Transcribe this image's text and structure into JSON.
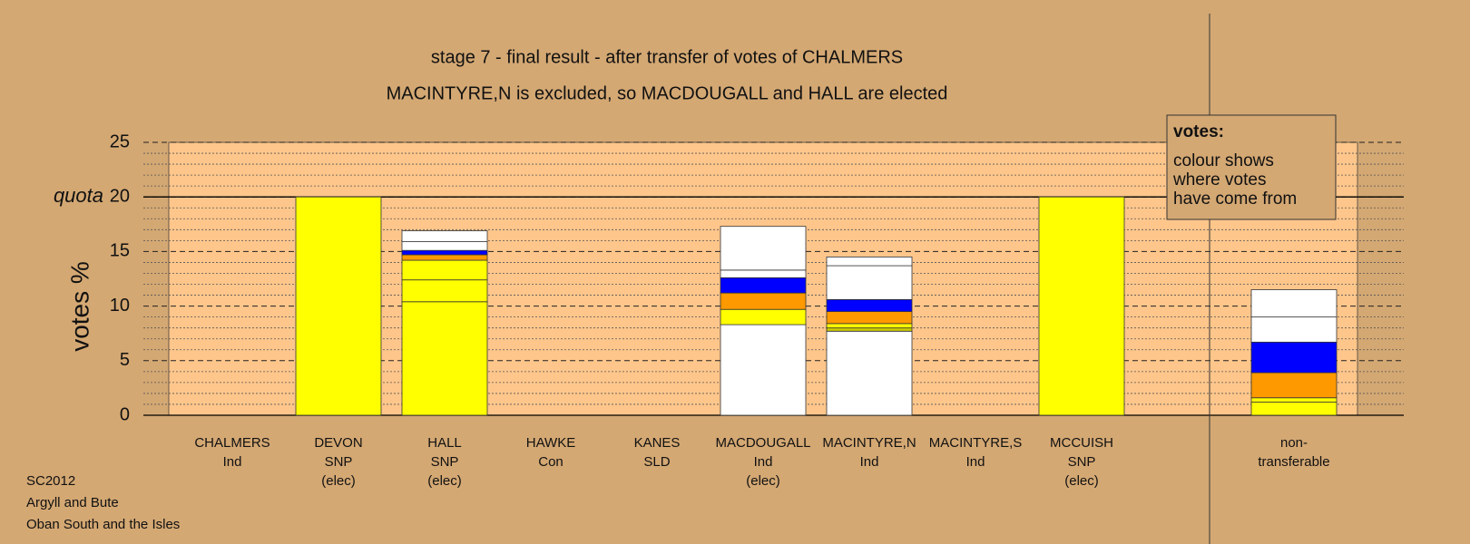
{
  "chart_data": {
    "type": "stacked-bar",
    "title": "stage 7 - final result - after transfer of votes of CHALMERS",
    "subtitle": "MACINTYRE,N is excluded, so MACDOUGALL and HALL are elected",
    "y_label": "votes %",
    "categories": [
      [
        "CHALMERS",
        "Ind"
      ],
      [
        "DEVON",
        "SNP",
        "(elec)"
      ],
      [
        "HALL",
        "SNP",
        "(elec)"
      ],
      [
        "HAWKE",
        "Con"
      ],
      [
        "KANES",
        "SLD"
      ],
      [
        "MACDOUGALL",
        "Ind",
        "(elec)"
      ],
      [
        "MACINTYRE,N",
        "Ind"
      ],
      [
        "MACINTYRE,S",
        "Ind"
      ],
      [
        "MCCUISH",
        "SNP",
        "(elec)"
      ],
      [
        "non-",
        "transferable"
      ]
    ],
    "stacks": [
      [],
      [
        {
          "color": "#ffff00",
          "value": 20
        }
      ],
      [
        {
          "color": "#ffff00",
          "value": 10.4
        },
        {
          "color": "#ffff00",
          "value": 2.0
        },
        {
          "color": "#ffff00",
          "value": 1.8
        },
        {
          "color": "#ff9900",
          "value": 0.5
        },
        {
          "color": "#0000ff",
          "value": 0.4
        },
        {
          "color": "#ffffff",
          "value": 0.8
        },
        {
          "color": "#ffffff",
          "value": 1.0
        }
      ],
      [],
      [],
      [
        {
          "color": "#ffffff",
          "value": 8.3
        },
        {
          "color": "#ffff00",
          "value": 1.4
        },
        {
          "color": "#ff9900",
          "value": 1.5
        },
        {
          "color": "#0000ff",
          "value": 1.4
        },
        {
          "color": "#ffffff",
          "value": 0.7
        },
        {
          "color": "#ffffff",
          "value": 4.0
        }
      ],
      [
        {
          "color": "#ffffff",
          "value": 7.7
        },
        {
          "color": "#cccc00",
          "value": 0.3
        },
        {
          "color": "#ffff00",
          "value": 0.4
        },
        {
          "color": "#ff9900",
          "value": 1.1
        },
        {
          "color": "#0000ff",
          "value": 1.1
        },
        {
          "color": "#ffffff",
          "value": 3.1
        },
        {
          "color": "#ffffff",
          "value": 0.8
        }
      ],
      [],
      [
        {
          "color": "#ffff00",
          "value": 20
        }
      ],
      [
        {
          "color": "#ffff00",
          "value": 1.2
        },
        {
          "color": "#ffff00",
          "value": 0.4
        },
        {
          "color": "#ff9900",
          "value": 2.3
        },
        {
          "color": "#0000ff",
          "value": 2.8
        },
        {
          "color": "#ffffff",
          "value": 2.3
        },
        {
          "color": "#ffffff",
          "value": 2.5
        }
      ]
    ],
    "ylim": [
      0,
      25
    ],
    "yticks": [
      0,
      5,
      10,
      15,
      20,
      25
    ],
    "minor_yticks": [
      1,
      2,
      3,
      4,
      6,
      7,
      8,
      9,
      11,
      12,
      13,
      14,
      16,
      17,
      18,
      19,
      21,
      22,
      23,
      24
    ],
    "quota": {
      "value": 20,
      "label": "quota"
    },
    "legend": {
      "title": "votes:",
      "lines": [
        "colour shows",
        "where votes",
        "have come from"
      ]
    },
    "notes": [
      "SC2012",
      "Argyll and Bute",
      "Oban South and the Isles"
    ]
  }
}
